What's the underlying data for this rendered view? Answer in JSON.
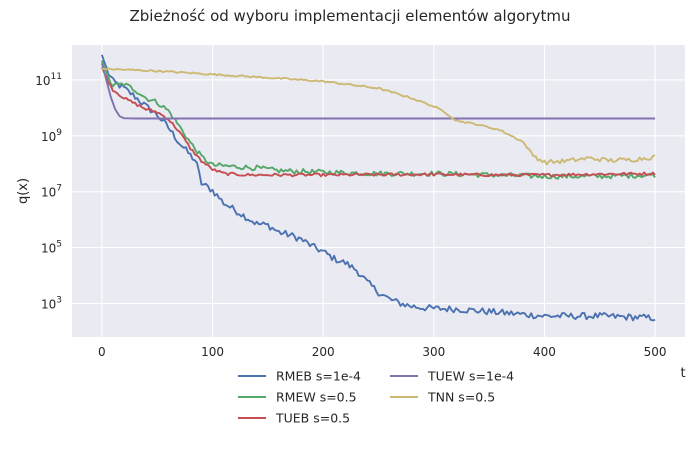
{
  "chart_data": {
    "type": "line",
    "title": "Zbieżność od wyboru implementacji elementów algorytmu",
    "xlabel": "t",
    "ylabel": "q(x)",
    "xlim": [
      -27,
      527
    ],
    "ylim_log10": [
      1.8,
      12.25
    ],
    "y_scale": "log",
    "grid": true,
    "legend_placement": "below-center",
    "x_ticks": [
      {
        "value": 0,
        "label": "0"
      },
      {
        "value": 100,
        "label": "100"
      },
      {
        "value": 200,
        "label": "200"
      },
      {
        "value": 300,
        "label": "300"
      },
      {
        "value": 400,
        "label": "400"
      },
      {
        "value": 500,
        "label": "500"
      }
    ],
    "y_ticks": [
      {
        "exp": 3,
        "base": "10",
        "sup": "3"
      },
      {
        "exp": 5,
        "base": "10",
        "sup": "5"
      },
      {
        "exp": 7,
        "base": "10",
        "sup": "7"
      },
      {
        "exp": 9,
        "base": "10",
        "sup": "9"
      },
      {
        "exp": 11,
        "base": "10",
        "sup": "11"
      }
    ],
    "series": [
      {
        "name": "RMEB s=1e-4",
        "color": "#4c72b0",
        "noise": 0.12,
        "points": [
          [
            0,
            11.9
          ],
          [
            5,
            11.3
          ],
          [
            10,
            10.95
          ],
          [
            20,
            10.7
          ],
          [
            30,
            10.4
          ],
          [
            40,
            10.05
          ],
          [
            50,
            9.75
          ],
          [
            60,
            9.3
          ],
          [
            70,
            8.75
          ],
          [
            80,
            8.3
          ],
          [
            85,
            8.1
          ],
          [
            90,
            7.3
          ],
          [
            100,
            7.05
          ],
          [
            110,
            6.6
          ],
          [
            120,
            6.35
          ],
          [
            130,
            6.1
          ],
          [
            140,
            5.85
          ],
          [
            150,
            5.8
          ],
          [
            160,
            5.55
          ],
          [
            170,
            5.45
          ],
          [
            180,
            5.3
          ],
          [
            190,
            5.05
          ],
          [
            200,
            4.85
          ],
          [
            210,
            4.6
          ],
          [
            220,
            4.45
          ],
          [
            230,
            4.2
          ],
          [
            240,
            3.75
          ],
          [
            250,
            3.4
          ],
          [
            260,
            3.15
          ],
          [
            270,
            3.0
          ],
          [
            280,
            2.9
          ],
          [
            290,
            2.85
          ],
          [
            300,
            2.82
          ],
          [
            320,
            2.8
          ],
          [
            400,
            2.55
          ],
          [
            450,
            2.55
          ],
          [
            500,
            2.48
          ]
        ]
      },
      {
        "name": "RMEW s=0.5",
        "color": "#55a868",
        "noise": 0.09,
        "points": [
          [
            0,
            11.7
          ],
          [
            5,
            11.1
          ],
          [
            10,
            10.8
          ],
          [
            20,
            10.85
          ],
          [
            30,
            10.65
          ],
          [
            40,
            10.35
          ],
          [
            50,
            10.2
          ],
          [
            60,
            9.9
          ],
          [
            70,
            9.35
          ],
          [
            80,
            8.75
          ],
          [
            90,
            8.25
          ],
          [
            100,
            7.95
          ],
          [
            120,
            7.9
          ],
          [
            140,
            7.85
          ],
          [
            160,
            7.75
          ],
          [
            200,
            7.7
          ],
          [
            250,
            7.65
          ],
          [
            300,
            7.65
          ],
          [
            350,
            7.6
          ],
          [
            400,
            7.55
          ],
          [
            450,
            7.55
          ],
          [
            500,
            7.6
          ]
        ]
      },
      {
        "name": "TUEB s=0.5",
        "color": "#c44e52",
        "noise": 0.05,
        "points": [
          [
            0,
            11.45
          ],
          [
            5,
            11.0
          ],
          [
            10,
            10.65
          ],
          [
            20,
            10.35
          ],
          [
            30,
            10.15
          ],
          [
            40,
            9.95
          ],
          [
            50,
            9.85
          ],
          [
            60,
            9.6
          ],
          [
            70,
            9.15
          ],
          [
            80,
            8.55
          ],
          [
            90,
            8.1
          ],
          [
            100,
            7.8
          ],
          [
            110,
            7.65
          ],
          [
            130,
            7.6
          ],
          [
            160,
            7.6
          ],
          [
            200,
            7.6
          ],
          [
            300,
            7.62
          ],
          [
            350,
            7.6
          ],
          [
            400,
            7.6
          ],
          [
            450,
            7.63
          ],
          [
            500,
            7.65
          ]
        ]
      },
      {
        "name": "TUEW s=1e-4",
        "color": "#8172b2",
        "noise": 0.0,
        "points": [
          [
            0,
            11.6
          ],
          [
            4,
            11.0
          ],
          [
            8,
            10.4
          ],
          [
            12,
            9.95
          ],
          [
            16,
            9.7
          ],
          [
            20,
            9.63
          ],
          [
            30,
            9.62
          ],
          [
            500,
            9.62
          ]
        ]
      },
      {
        "name": "TNN s=0.5",
        "color": "#ccb974",
        "noise": 0.03,
        "noise_after": 390,
        "noise_late": 0.08,
        "points": [
          [
            0,
            11.4
          ],
          [
            50,
            11.32
          ],
          [
            100,
            11.2
          ],
          [
            150,
            11.08
          ],
          [
            200,
            10.95
          ],
          [
            250,
            10.7
          ],
          [
            280,
            10.35
          ],
          [
            300,
            10.05
          ],
          [
            310,
            9.85
          ],
          [
            320,
            9.55
          ],
          [
            340,
            9.4
          ],
          [
            360,
            9.2
          ],
          [
            380,
            8.8
          ],
          [
            390,
            8.3
          ],
          [
            400,
            8.05
          ],
          [
            420,
            8.1
          ],
          [
            440,
            8.2
          ],
          [
            460,
            8.12
          ],
          [
            480,
            8.15
          ],
          [
            500,
            8.25
          ]
        ]
      }
    ]
  }
}
